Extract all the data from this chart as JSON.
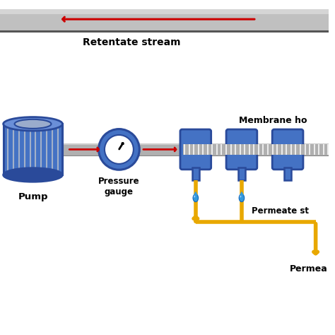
{
  "bg_color": "#ffffff",
  "blue": "#4472c4",
  "blue_dark": "#2a4a9a",
  "blue_light": "#6a8fd8",
  "blue_top": "#8aaae8",
  "gray_pipe": "#b0b0b0",
  "gray_light": "#cccccc",
  "gray_dark": "#888888",
  "red": "#cc0000",
  "gold": "#e8a800",
  "black": "#000000",
  "white": "#ffffff",
  "retentate_label": "Retentate stream",
  "pump_label": "Pump",
  "pressure_label": "Pressure\ngauge",
  "membrane_label": "Membrane ho",
  "permeate_stream_label": "Permeate st",
  "permeate_label": "Permea"
}
